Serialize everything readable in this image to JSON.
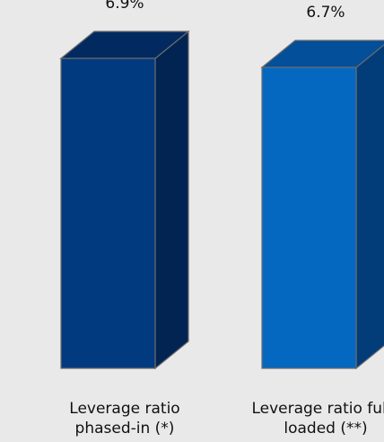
{
  "chart_data": {
    "type": "bar",
    "title": "",
    "xlabel": "",
    "ylabel": "",
    "ylim": [
      0,
      7.5
    ],
    "categories": [
      "Leverage ratio phased-in (*)",
      "Leverage ratio fully loaded (**)"
    ],
    "category_lines": [
      [
        "Leverage ratio",
        "phased-in (*)"
      ],
      [
        "Leverage ratio fully",
        "loaded (**)"
      ]
    ],
    "values": [
      6.9,
      6.7
    ],
    "value_labels": [
      "6.9%",
      "6.7%"
    ],
    "colors": [
      {
        "front": "#023a80",
        "side": "#012452",
        "top": "#022a60"
      },
      {
        "front": "#0468c0",
        "side": "#023d7a",
        "top": "#034f9a"
      }
    ],
    "style": "3d-columns",
    "grid": false,
    "legend": "none"
  }
}
